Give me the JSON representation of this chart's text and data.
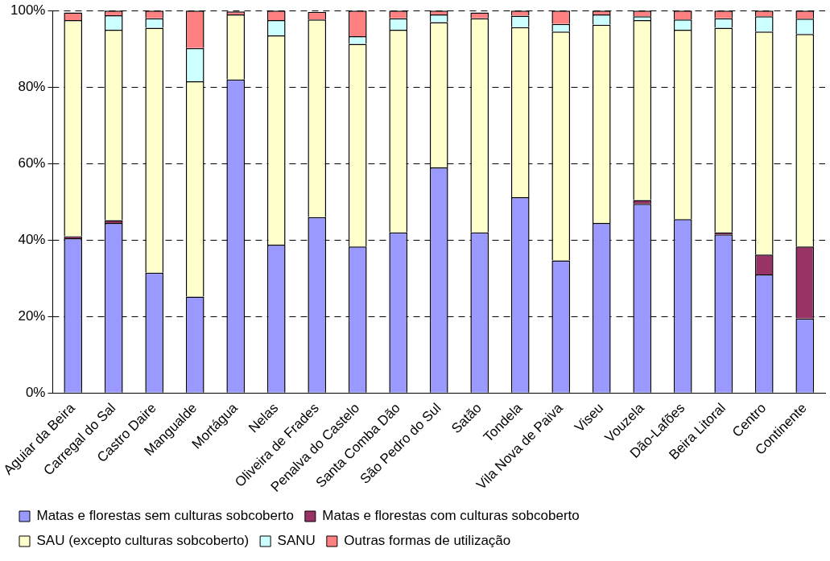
{
  "chart_data": {
    "type": "bar",
    "stacked": true,
    "categories": [
      "Aguiar da Beira",
      "Carregal do Sal",
      "Castro Daire",
      "Mangualde",
      "Mortágua",
      "Nelas",
      "Oliveira de Frades",
      "Penalva do Castelo",
      "Santa Comba Dão",
      "São Pedro do Sul",
      "Satão",
      "Tondela",
      "Vila Nova de Paiva",
      "Viseu",
      "Vouzela",
      "Dão-Lafões",
      "Beira Litoral",
      "Centro",
      "Continente"
    ],
    "series": [
      {
        "name": "Matas e florestas sem culturas sobcoberto",
        "color": "#9999ff",
        "values": [
          40.5,
          44.5,
          31.5,
          25.2,
          82,
          38.8,
          46,
          38.3,
          42,
          59,
          42,
          51.2,
          34.7,
          44.5,
          49.5,
          45.5,
          41.5,
          31,
          19.5
        ]
      },
      {
        "name": "Matas e florestas com culturas sobcoberto",
        "color": "#993366",
        "values": [
          0.5,
          0.7,
          0,
          0,
          0,
          0,
          0,
          0,
          0,
          0,
          0,
          0,
          0,
          0,
          1,
          0,
          0.5,
          5.2,
          18.8
        ]
      },
      {
        "name": "SAU (excepto culturas sobcoberto)",
        "color": "#ffffcc",
        "values": [
          56.5,
          49.8,
          64,
          56.3,
          17,
          54.7,
          51.7,
          53,
          53,
          38,
          56,
          44.5,
          59.8,
          51.8,
          47,
          49.5,
          53.5,
          58.3,
          55.6
        ]
      },
      {
        "name": "SANU",
        "color": "#ccffff",
        "values": [
          null,
          3.8,
          2.5,
          8.7,
          null,
          4,
          null,
          2,
          3,
          2,
          null,
          3,
          2,
          2.7,
          1,
          2.7,
          2.5,
          4,
          4
        ]
      },
      {
        "name": "Outras formas de utilização",
        "color": "#ff8080",
        "values": [
          2,
          1.2,
          2,
          9.8,
          0.8,
          2.5,
          2,
          6.7,
          2,
          1,
          1.5,
          1.3,
          3.5,
          1,
          1.5,
          2.3,
          2,
          1.5,
          2.1
        ]
      }
    ],
    "ylim": [
      0,
      100
    ],
    "yticks": [
      {
        "value": 0,
        "label": "0%"
      },
      {
        "value": 20,
        "label": "20%"
      },
      {
        "value": 40,
        "label": "40%"
      },
      {
        "value": 60,
        "label": "60%"
      },
      {
        "value": 80,
        "label": "80%"
      },
      {
        "value": 100,
        "label": "100%"
      }
    ],
    "grid": "y",
    "legend": "bottom"
  }
}
